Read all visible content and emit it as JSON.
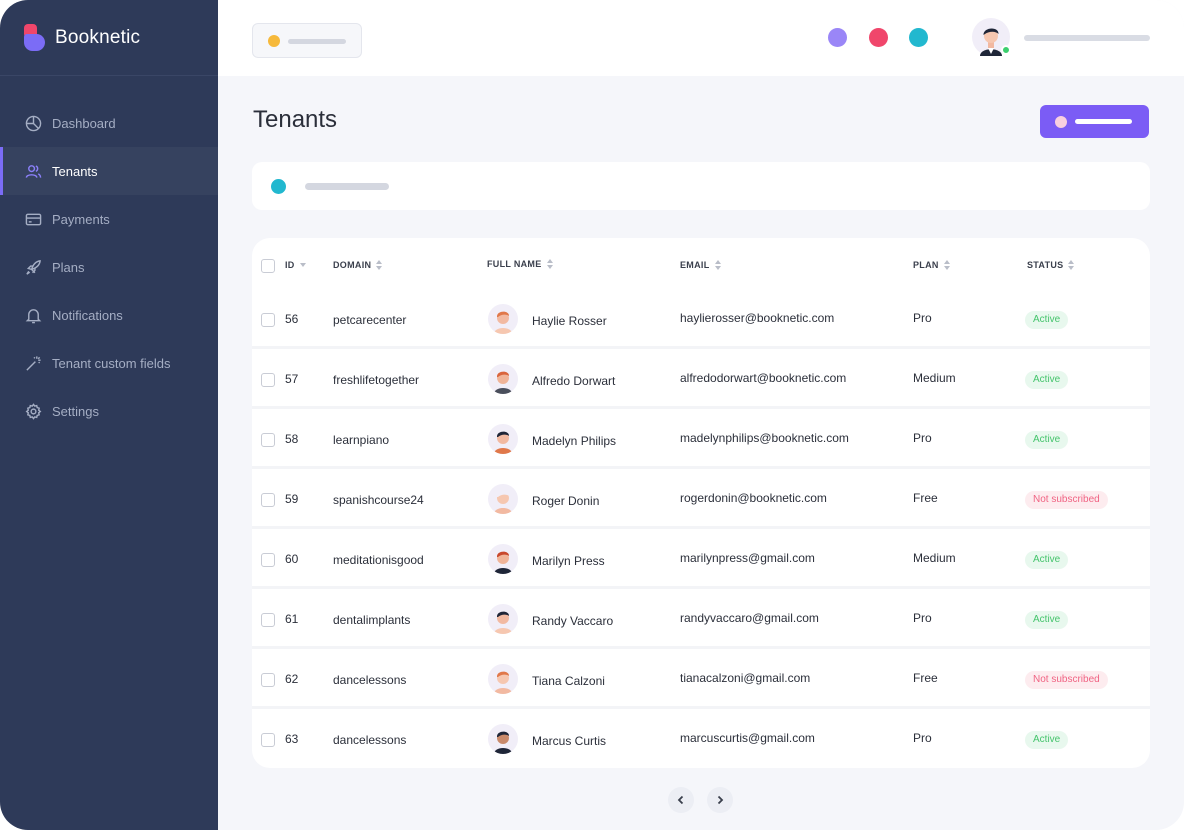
{
  "app": {
    "name": "Booknetic"
  },
  "sidebar": {
    "items": [
      {
        "label": "Dashboard",
        "icon": "dashboard-icon",
        "active": false
      },
      {
        "label": "Tenants",
        "icon": "users-icon",
        "active": true
      },
      {
        "label": "Payments",
        "icon": "credit-card-icon",
        "active": false
      },
      {
        "label": "Plans",
        "icon": "rocket-icon",
        "active": false
      },
      {
        "label": "Notifications",
        "icon": "bell-icon",
        "active": false
      },
      {
        "label": "Tenant custom fields",
        "icon": "magic-wand-icon",
        "active": false
      },
      {
        "label": "Settings",
        "icon": "gear-icon",
        "active": false
      }
    ]
  },
  "header": {
    "status_dots": [
      "#9a86f7",
      "#f0466b",
      "#22b8cf"
    ],
    "online": true
  },
  "page": {
    "title": "Tenants"
  },
  "table": {
    "columns": [
      "ID",
      "DOMAIN",
      "FULL NAME",
      "EMAIL",
      "PLAN",
      "STATUS"
    ],
    "rows": [
      {
        "id": "56",
        "domain": "petcarecenter",
        "name": "Haylie Rosser",
        "email": "haylierosser@booknetic.com",
        "plan": "Pro",
        "status": "Active",
        "status_type": "active"
      },
      {
        "id": "57",
        "domain": "freshlifetogether",
        "name": "Alfredo Dorwart",
        "email": "alfredodorwart@booknetic.com",
        "plan": "Medium",
        "status": "Active",
        "status_type": "active"
      },
      {
        "id": "58",
        "domain": "learnpiano",
        "name": "Madelyn Philips",
        "email": "madelynphilips@booknetic.com",
        "plan": "Pro",
        "status": "Active",
        "status_type": "active"
      },
      {
        "id": "59",
        "domain": "spanishcourse24",
        "name": "Roger Donin",
        "email": "rogerdonin@booknetic.com",
        "plan": "Free",
        "status": "Not subscribed",
        "status_type": "not"
      },
      {
        "id": "60",
        "domain": "meditationisgood",
        "name": "Marilyn Press",
        "email": "marilynpress@gmail.com",
        "plan": "Medium",
        "status": "Active",
        "status_type": "active"
      },
      {
        "id": "61",
        "domain": "dentalimplants",
        "name": "Randy Vaccaro",
        "email": "randyvaccaro@gmail.com",
        "plan": "Pro",
        "status": "Active",
        "status_type": "active"
      },
      {
        "id": "62",
        "domain": "dancelessons",
        "name": "Tiana Calzoni",
        "email": "tianacalzoni@gmail.com",
        "plan": "Free",
        "status": "Not subscribed",
        "status_type": "not"
      },
      {
        "id": "63",
        "domain": "dancelessons",
        "name": "Marcus Curtis",
        "email": "marcuscurtis@gmail.com",
        "plan": "Pro",
        "status": "Active",
        "status_type": "active"
      }
    ]
  },
  "colors": {
    "sidebar_bg": "#2e3a59",
    "accent": "#7b5cf5",
    "active_green": "#45c46c",
    "not_subscribed_pink": "#f06383"
  }
}
